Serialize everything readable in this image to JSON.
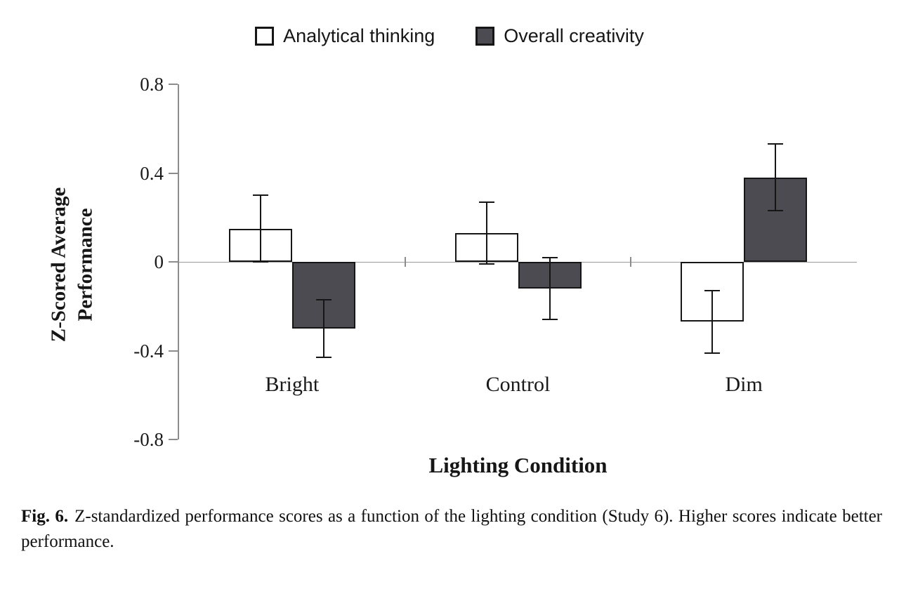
{
  "chart_data": {
    "type": "bar",
    "title": "",
    "categories": [
      "Bright",
      "Control",
      "Dim"
    ],
    "series": [
      {
        "name": "Analytical thinking",
        "color": "#ffffff",
        "values": [
          0.15,
          0.13,
          -0.27
        ],
        "errors": [
          0.15,
          0.14,
          0.14
        ]
      },
      {
        "name": "Overall creativity",
        "color": "#4c4b51",
        "values": [
          -0.3,
          -0.12,
          0.38
        ],
        "errors": [
          0.13,
          0.14,
          0.15
        ]
      }
    ],
    "xlabel": "Lighting Condition",
    "ylabel": "Z-Scored Average Performance",
    "ylabel_lines": [
      "Z-Scored Average",
      "Performance"
    ],
    "ylim": [
      -0.8,
      0.8
    ],
    "yticks": [
      0.8,
      0.4,
      0,
      -0.4,
      -0.8
    ],
    "ytick_labels": [
      "0.8",
      "0.4",
      "0",
      "-0.4",
      "-0.8"
    ],
    "bar_border_color": "#161616",
    "axis_color": "#8c8c8c",
    "grid": false,
    "legend_position": "top"
  },
  "caption": {
    "fig_label": "Fig. 6.",
    "text": "Z-standardized performance scores as a function of the lighting condition (Study 6). Higher scores indicate better performance."
  }
}
